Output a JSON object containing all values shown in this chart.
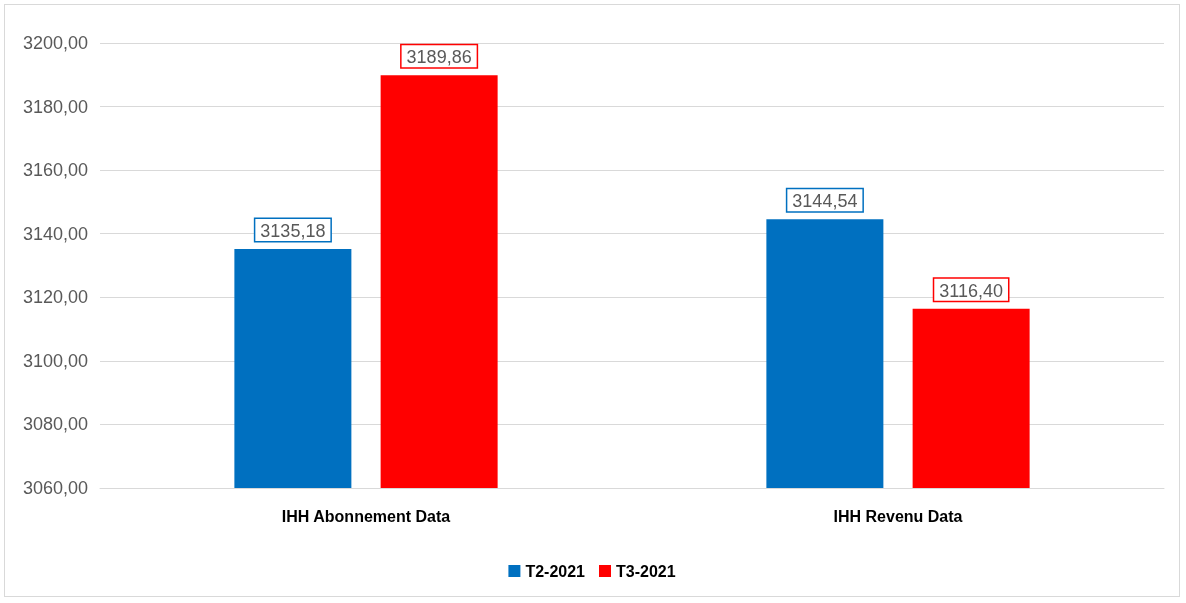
{
  "chart_data": {
    "type": "bar",
    "categories": [
      "IHH Abonnement Data",
      "IHH Revenu Data"
    ],
    "series": [
      {
        "name": "T2-2021",
        "color": "#0070c0",
        "values": [
          3135.18,
          3144.54
        ],
        "value_labels": [
          "3135,18",
          "3144,54"
        ]
      },
      {
        "name": "T3-2021",
        "color": "#ff0000",
        "values": [
          3189.86,
          3116.4
        ],
        "value_labels": [
          "3189,86",
          "3116,40"
        ]
      }
    ],
    "ylim": [
      3060,
      3200
    ],
    "yticks": [
      {
        "value": 3060,
        "label": "3060,00"
      },
      {
        "value": 3080,
        "label": "3080,00"
      },
      {
        "value": 3100,
        "label": "3100,00"
      },
      {
        "value": 3120,
        "label": "3120,00"
      },
      {
        "value": 3140,
        "label": "3140,00"
      },
      {
        "value": 3160,
        "label": "3160,00"
      },
      {
        "value": 3180,
        "label": "3180,00"
      },
      {
        "value": 3200,
        "label": "3200,00"
      }
    ],
    "grid": "y",
    "legend": "bottom"
  }
}
